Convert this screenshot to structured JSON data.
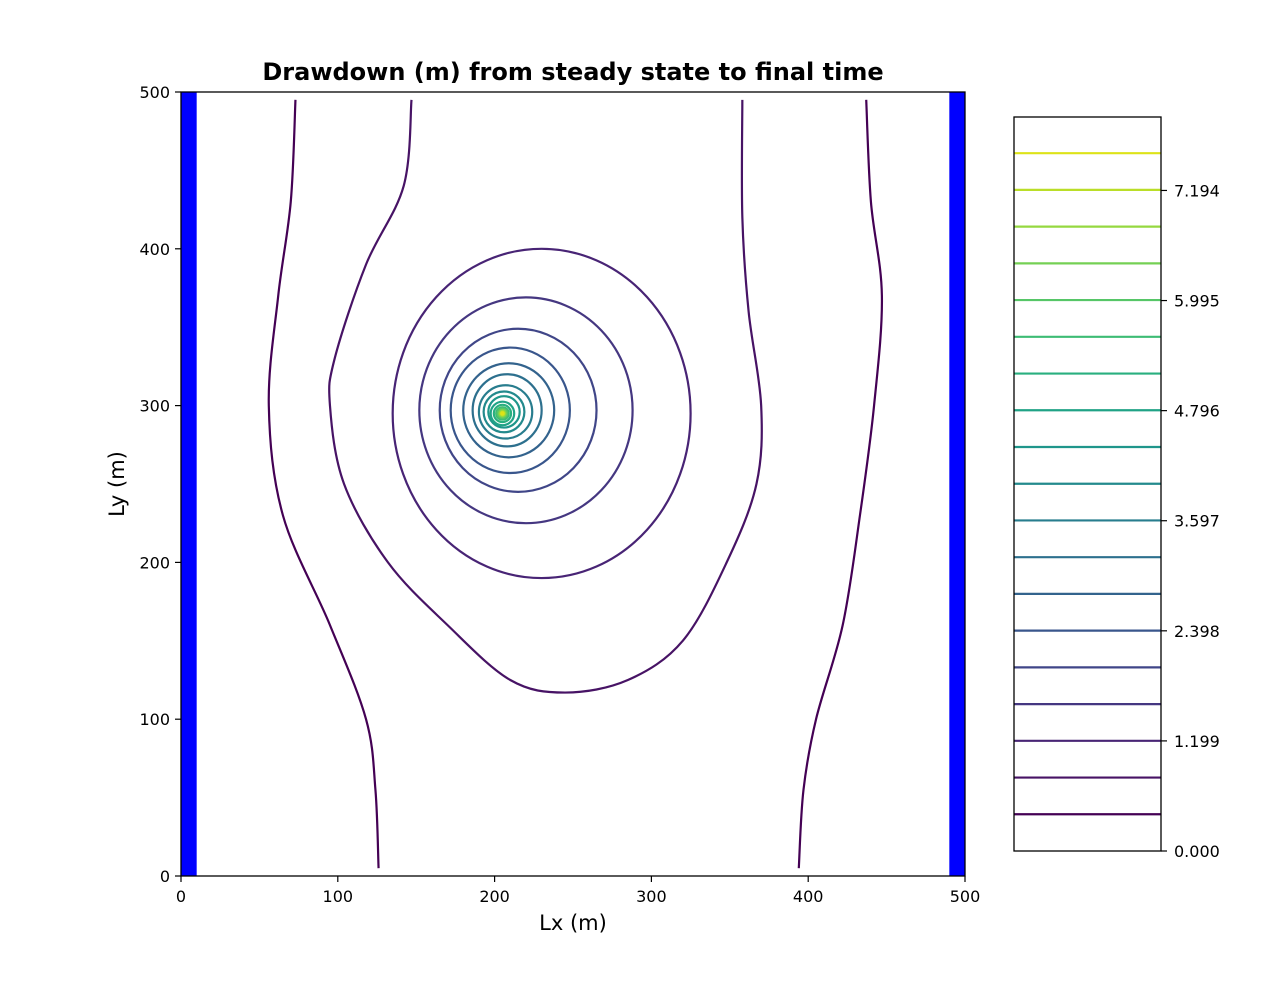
{
  "chart_data": {
    "type": "contour",
    "title": "Drawdown (m) from steady state to final time",
    "xlabel": "Lx (m)",
    "ylabel": "Ly (m)",
    "xlim": [
      0,
      500
    ],
    "ylim": [
      0,
      500
    ],
    "x_ticks": [
      0,
      100,
      200,
      300,
      400,
      500
    ],
    "y_ticks": [
      0,
      100,
      200,
      300,
      400,
      500
    ],
    "constant_head_boundaries": [
      {
        "side": "left",
        "x_range": [
          0,
          10
        ],
        "color": "#0000ff"
      },
      {
        "side": "right",
        "x_range": [
          490,
          500
        ],
        "color": "#0000ff"
      }
    ],
    "well": {
      "x": 205,
      "y": 295
    },
    "colorbar": {
      "ticks": [
        "0.000",
        "1.199",
        "2.398",
        "3.597",
        "4.796",
        "5.995",
        "7.194"
      ],
      "min": 0.0,
      "max": 7.994,
      "levels": [
        0.4,
        0.8,
        1.2,
        1.6,
        2.0,
        2.4,
        2.8,
        3.2,
        3.6,
        4.0,
        4.4,
        4.8,
        5.2,
        5.6,
        6.0,
        6.4,
        6.8,
        7.2,
        7.6
      ],
      "colors": [
        "#440154",
        "#471365",
        "#482475",
        "#453781",
        "#404688",
        "#39568c",
        "#33638d",
        "#2d708e",
        "#287d8e",
        "#238a8d",
        "#1f968b",
        "#20a386",
        "#29af7f",
        "#3dbc74",
        "#56c667",
        "#75d054",
        "#95d840",
        "#bade28",
        "#dde318"
      ]
    },
    "open_contours": [
      {
        "level": 0.4,
        "points": [
          [
            73,
            495
          ],
          [
            70,
            430
          ],
          [
            62,
            370
          ],
          [
            56,
            300
          ],
          [
            65,
            230
          ],
          [
            95,
            160
          ],
          [
            118,
            100
          ],
          [
            124,
            55
          ],
          [
            126,
            5
          ]
        ]
      },
      {
        "level": 0.4,
        "points": [
          [
            437,
            495
          ],
          [
            440,
            430
          ],
          [
            447,
            370
          ],
          [
            442,
            300
          ],
          [
            433,
            230
          ],
          [
            422,
            160
          ],
          [
            405,
            100
          ],
          [
            397,
            55
          ],
          [
            394,
            5
          ]
        ]
      },
      {
        "level": 0.8,
        "points": [
          [
            147,
            495
          ],
          [
            142,
            440
          ],
          [
            118,
            390
          ],
          [
            98,
            330
          ],
          [
            95,
            300
          ],
          [
            104,
            250
          ],
          [
            132,
            200
          ],
          [
            170,
            160
          ],
          [
            210,
            125
          ],
          [
            245,
            117
          ],
          [
            285,
            125
          ],
          [
            320,
            150
          ],
          [
            348,
            200
          ],
          [
            367,
            250
          ],
          [
            370,
            300
          ],
          [
            362,
            360
          ],
          [
            358,
            420
          ],
          [
            358,
            495
          ]
        ]
      }
    ],
    "closed_contours": [
      {
        "level": 1.2,
        "cx": 230,
        "cy": 295,
        "rx": 95,
        "ry": 105
      },
      {
        "level": 1.6,
        "cx": 220,
        "cy": 297,
        "rx": 68,
        "ry": 72
      },
      {
        "level": 2.0,
        "cx": 215,
        "cy": 297,
        "rx": 50,
        "ry": 52
      },
      {
        "level": 2.4,
        "cx": 210,
        "cy": 297,
        "rx": 38,
        "ry": 40
      },
      {
        "level": 2.8,
        "cx": 209,
        "cy": 297,
        "rx": 29,
        "ry": 30
      },
      {
        "level": 3.2,
        "cx": 208,
        "cy": 297,
        "rx": 22,
        "ry": 23
      },
      {
        "level": 3.6,
        "cx": 207,
        "cy": 296,
        "rx": 17,
        "ry": 17
      },
      {
        "level": 4.0,
        "cx": 206,
        "cy": 296,
        "rx": 13,
        "ry": 13
      },
      {
        "level": 4.4,
        "cx": 206,
        "cy": 296,
        "rx": 10,
        "ry": 10
      },
      {
        "level": 4.8,
        "cx": 205,
        "cy": 295,
        "rx": 7.5,
        "ry": 7.5
      },
      {
        "level": 5.2,
        "cx": 205,
        "cy": 295,
        "rx": 5.5,
        "ry": 5.5
      },
      {
        "level": 5.6,
        "cx": 205,
        "cy": 295,
        "rx": 4,
        "ry": 4
      },
      {
        "level": 6.0,
        "cx": 205,
        "cy": 295,
        "rx": 3,
        "ry": 3
      },
      {
        "level": 6.4,
        "cx": 205,
        "cy": 295,
        "rx": 2.2,
        "ry": 2.2
      },
      {
        "level": 6.8,
        "cx": 205,
        "cy": 295,
        "rx": 1.6,
        "ry": 1.6
      },
      {
        "level": 7.2,
        "cx": 205,
        "cy": 295,
        "rx": 1.1,
        "ry": 1.1
      },
      {
        "level": 7.6,
        "cx": 205,
        "cy": 295,
        "rx": 0.7,
        "ry": 0.7
      }
    ]
  }
}
